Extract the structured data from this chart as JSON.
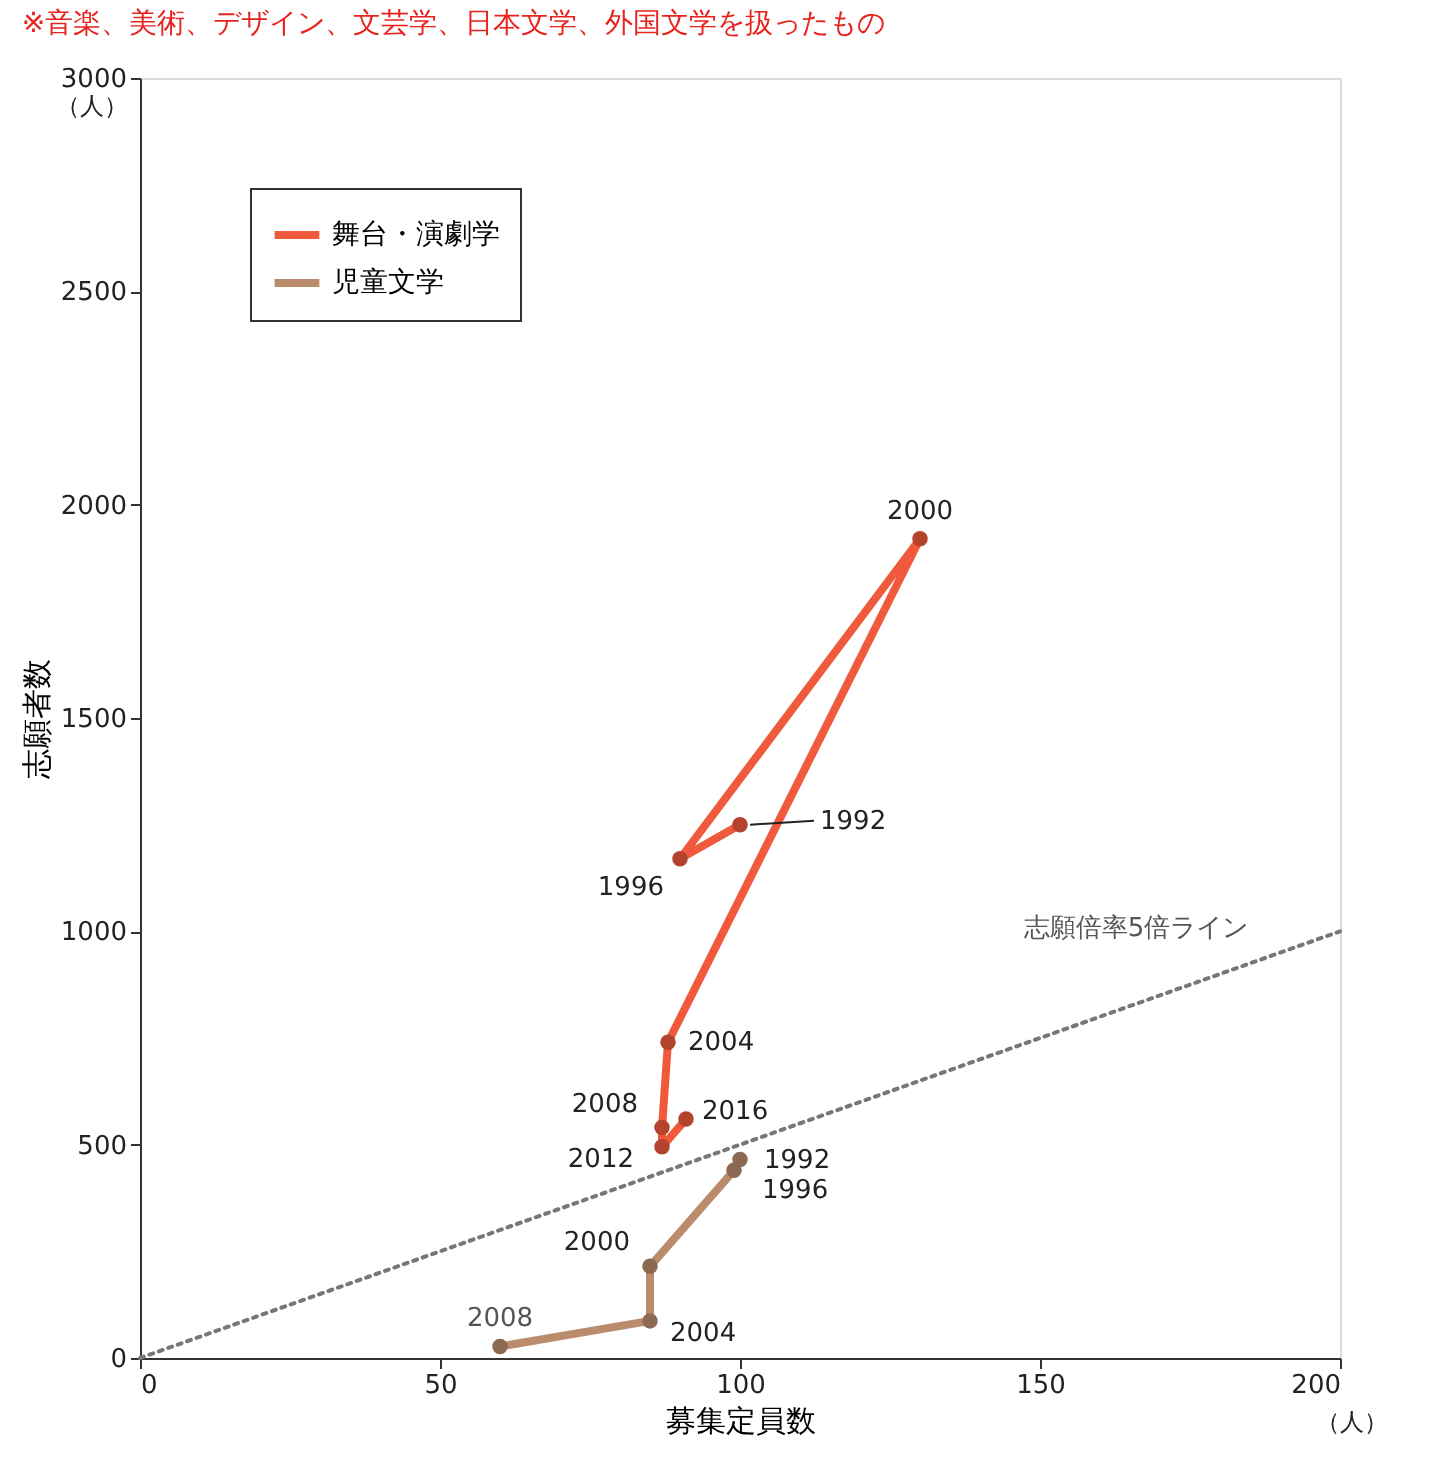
{
  "chart_data": {
    "type": "line",
    "xlabel": "募集定員数",
    "ylabel": "志願者数",
    "xlim": [
      0,
      200
    ],
    "xticks": [
      0,
      50,
      100,
      150,
      200
    ],
    "ylim": [
      0,
      3000
    ],
    "yticks": [
      0,
      500,
      1000,
      1500,
      2000,
      2500,
      3000
    ],
    "grid": false,
    "legend": "top left",
    "marker": "circle",
    "series": [
      {
        "name": "舞台・演劇学",
        "color": "#f05a3c",
        "x": [
          100,
          90,
          130,
          88,
          87,
          87,
          91
        ],
        "values": [
          1250,
          1170,
          1920,
          740,
          540,
          495,
          560
        ]
      },
      {
        "name": "児童文学",
        "color": "#bb8c6c",
        "x": [
          100,
          99,
          85,
          85,
          60
        ],
        "values": [
          465,
          440,
          215,
          87,
          27
        ]
      },
      {
        "type": "line",
        "color": "#777777",
        "line_style": "dotted",
        "marker": "none",
        "x": [
          0,
          200
        ],
        "values": [
          0,
          1000
        ]
      }
    ],
    "annotations": [
      "※音楽、美術、デザイン、文芸学、日本文学、外国文学を扱ったもの",
      "（人）",
      "（人）",
      {
        "text": "1992",
        "x": 100,
        "y": 1250
      },
      {
        "text": "1996",
        "x": 90,
        "y": 1170
      },
      {
        "text": "2000",
        "x": 130,
        "y": 1920
      },
      {
        "text": "2004",
        "x": 88,
        "y": 740
      },
      {
        "text": "2008",
        "x": 87,
        "y": 540
      },
      {
        "text": "2012",
        "x": 87,
        "y": 495
      },
      {
        "text": "2016",
        "x": 91,
        "y": 560
      },
      {
        "text": "1992",
        "x": 100,
        "y": 465
      },
      {
        "text": "1996",
        "x": 99,
        "y": 440
      },
      {
        "text": "2000",
        "x": 85,
        "y": 215
      },
      {
        "text": "2004",
        "x": 85,
        "y": 87
      },
      {
        "text": "2008",
        "x": 60,
        "y": 27
      },
      "志願倍率5倍ライン"
    ]
  }
}
